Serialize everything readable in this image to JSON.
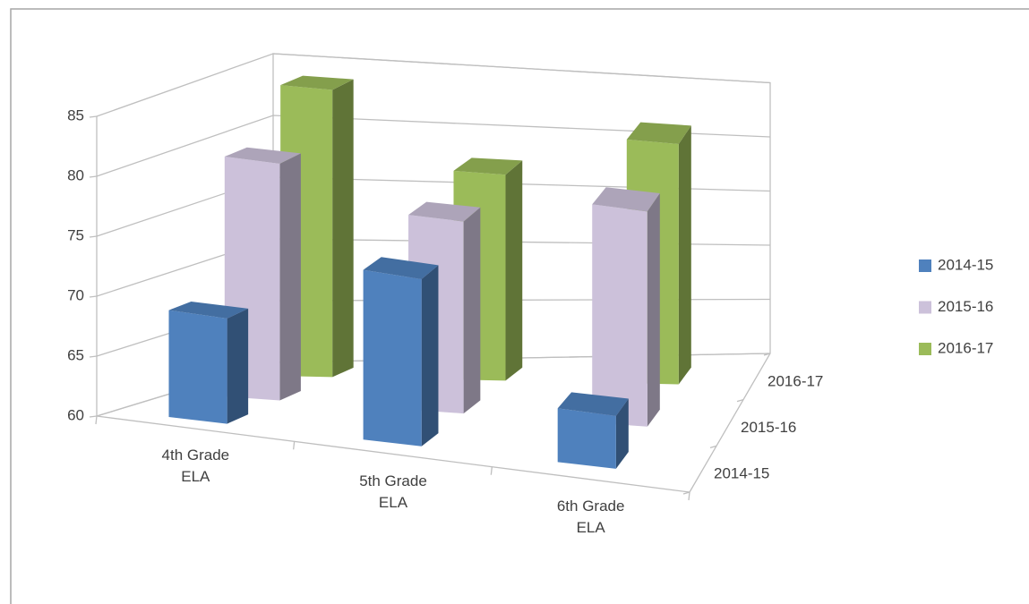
{
  "chart_data": {
    "type": "bar3d",
    "categories": [
      "4th Grade ELA",
      "5th Grade ELA",
      "6th Grade ELA"
    ],
    "series": [
      {
        "name": "2014-15",
        "color": "#4f81bd",
        "values": [
          69,
          75,
          65
        ]
      },
      {
        "name": "2015-16",
        "color": "#ccc1da",
        "values": [
          80,
          77,
          80
        ]
      },
      {
        "name": "2016-17",
        "color": "#9bbb59",
        "values": [
          84,
          78,
          82
        ]
      }
    ],
    "ylim": [
      60,
      85
    ],
    "yticks": [
      60,
      65,
      70,
      75,
      80,
      85
    ],
    "grid": true,
    "legend": "right"
  }
}
